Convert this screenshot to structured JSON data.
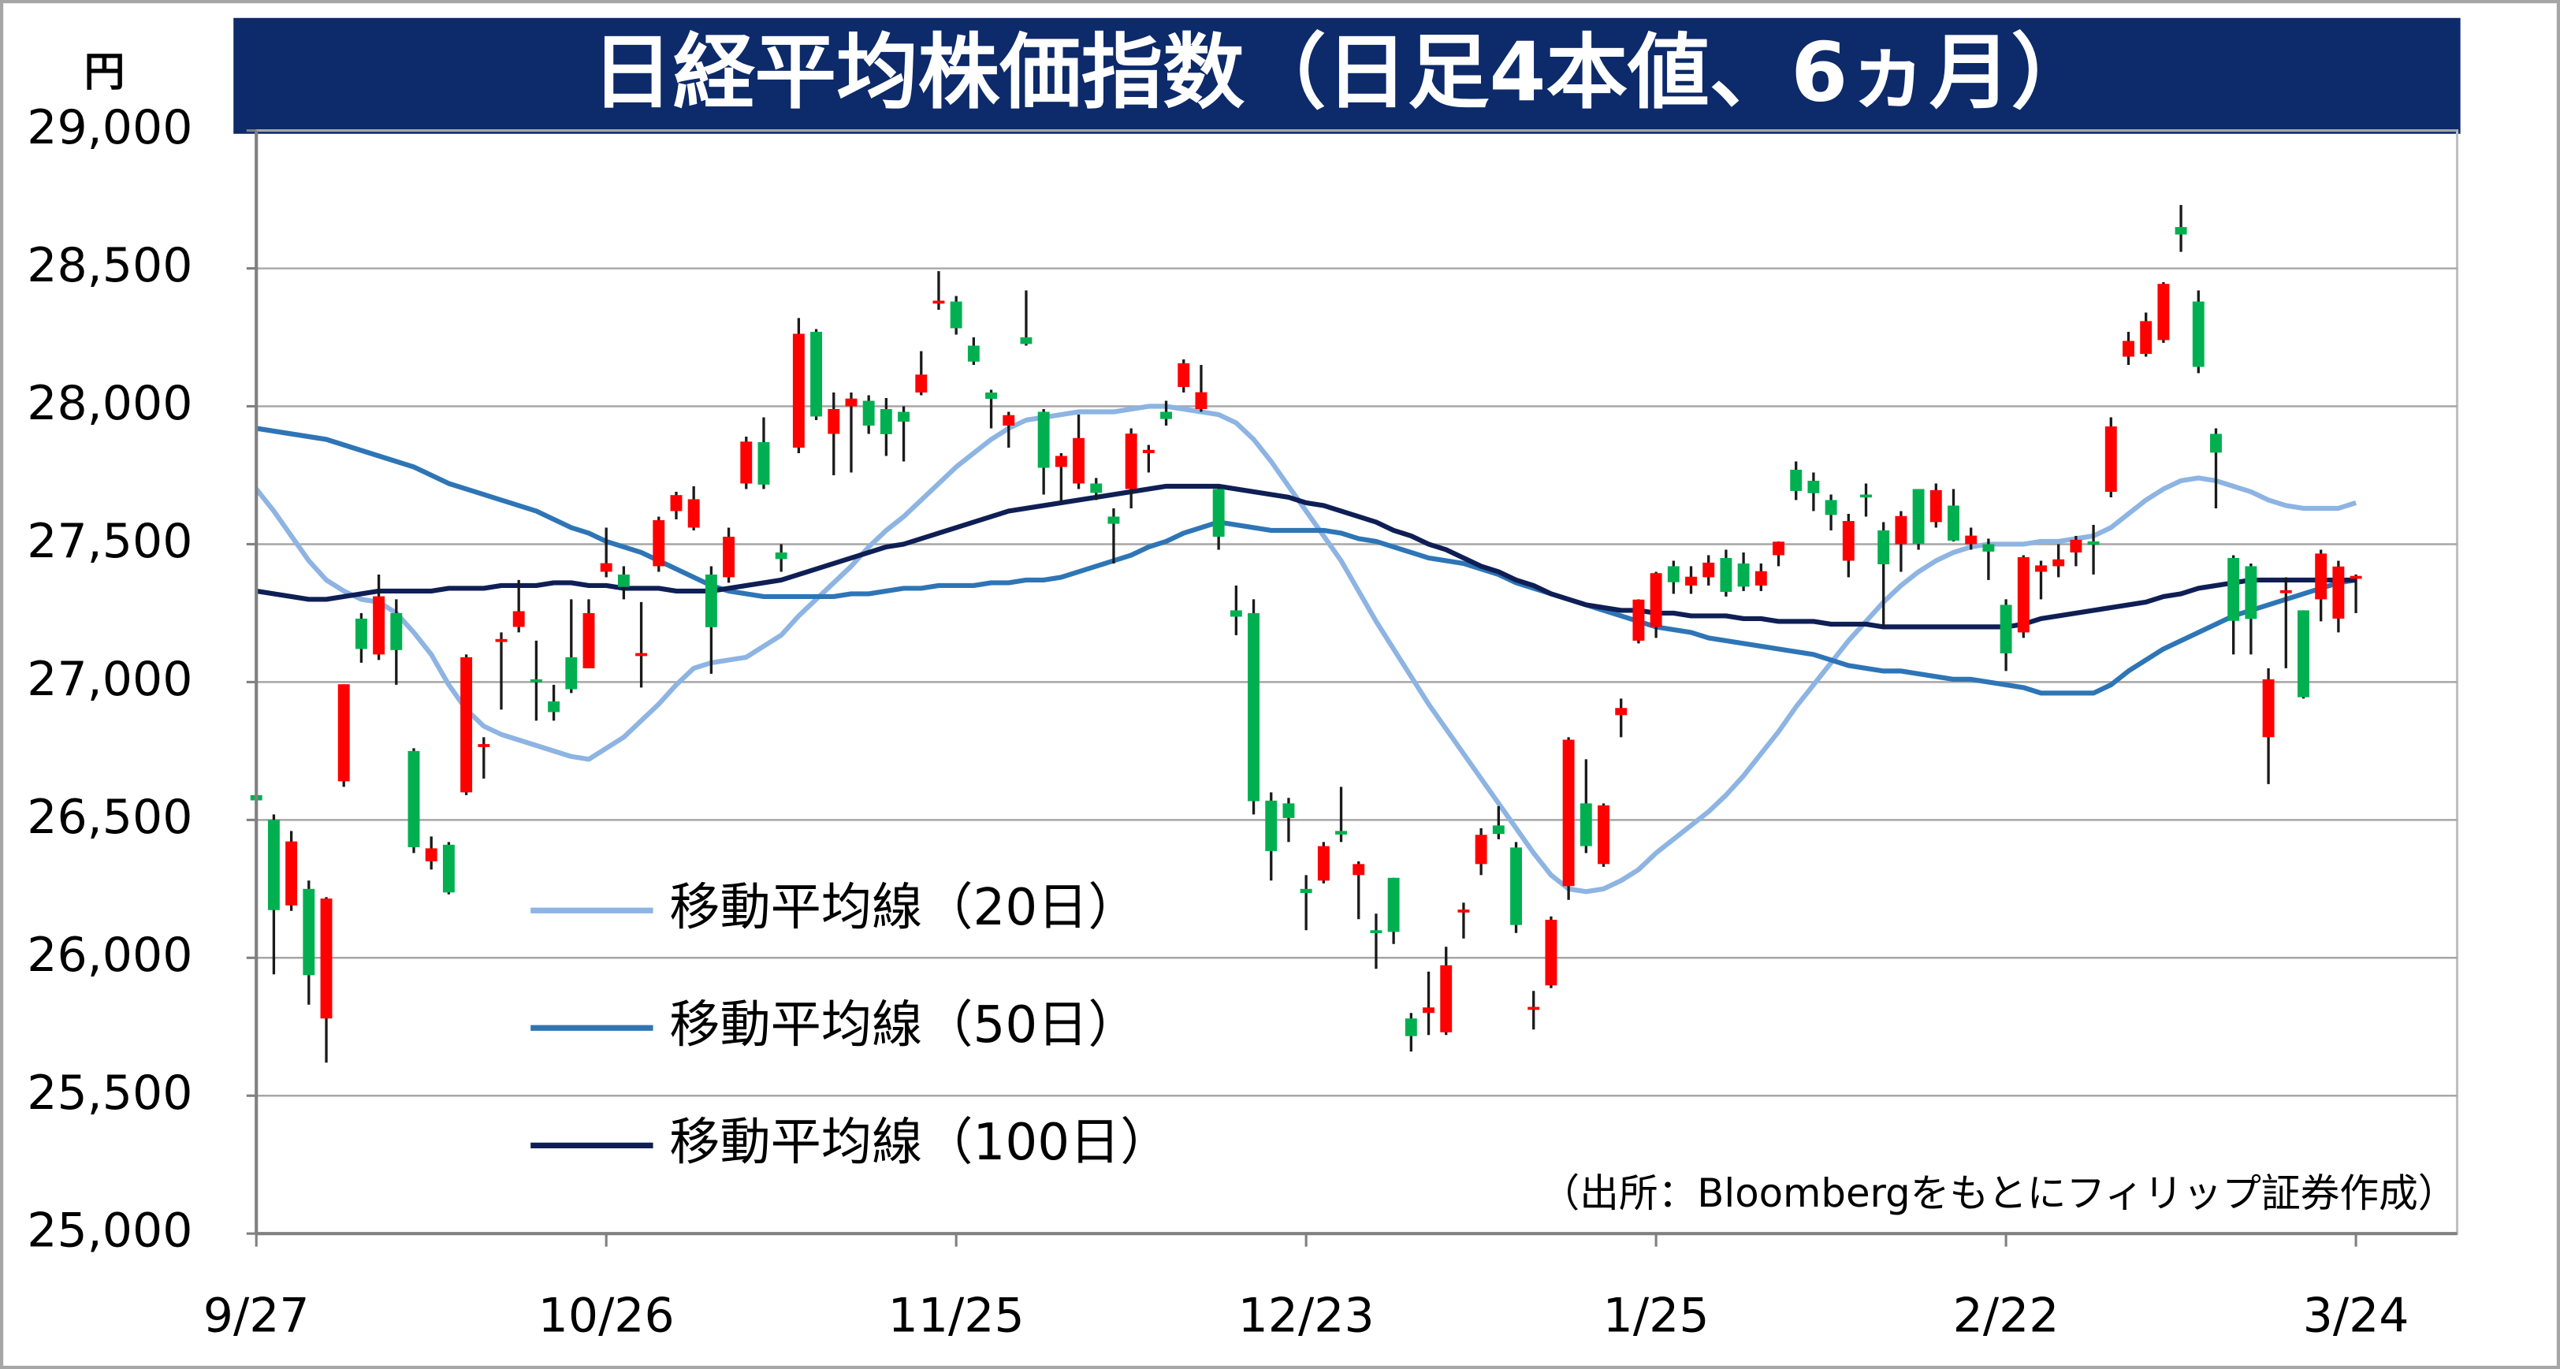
{
  "chart_data": {
    "type": "candlestick",
    "title": "日経平均株価指数（日足4本値、6ヵ月）",
    "y_unit": "円",
    "source": "（出所：Bloombergをもとにフィリップ証券作成）",
    "categories": [
      "9/27",
      null,
      null,
      null,
      null,
      null,
      null,
      null,
      null,
      null,
      null,
      null,
      null,
      null,
      null,
      null,
      null,
      null,
      null,
      null,
      "10/26",
      null,
      null,
      null,
      null,
      null,
      null,
      null,
      null,
      null,
      null,
      null,
      null,
      null,
      null,
      null,
      null,
      null,
      null,
      null,
      "11/25",
      null,
      null,
      null,
      null,
      null,
      null,
      null,
      null,
      null,
      null,
      null,
      null,
      null,
      null,
      null,
      null,
      null,
      null,
      null,
      "12/23",
      null,
      null,
      null,
      null,
      null,
      null,
      null,
      null,
      null,
      null,
      null,
      null,
      null,
      null,
      null,
      null,
      null,
      null,
      null,
      "1/25",
      null,
      null,
      null,
      null,
      null,
      null,
      null,
      null,
      null,
      null,
      null,
      null,
      null,
      null,
      null,
      null,
      null,
      null,
      null,
      "2/22",
      null,
      null,
      null,
      null,
      null,
      null,
      null,
      null,
      null,
      null,
      null,
      null,
      null,
      null,
      null,
      null,
      null,
      null,
      null,
      "3/24"
    ],
    "open": [
      26590,
      26500,
      26190,
      26250,
      25780,
      26640,
      27230,
      27100,
      27250,
      26750,
      26350,
      26410,
      26600,
      26770,
      27150,
      27200,
      27010,
      26930,
      27090,
      27050,
      27400,
      27390,
      27100,
      27420,
      27620,
      27560,
      27390,
      27380,
      27720,
      27870,
      27470,
      27850,
      28270,
      27900,
      28000,
      28020,
      27990,
      27980,
      28050,
      28380,
      28380,
      28220,
      28050,
      27930,
      28250,
      27980,
      27780,
      27720,
      27720,
      27600,
      27700,
      27830,
      27980,
      28070,
      27990,
      27700,
      27260,
      27250,
      26570,
      26560,
      26250,
      26280,
      26460,
      26300,
      26100,
      26290,
      25780,
      25800,
      25730,
      26170,
      26340,
      26480,
      26400,
      25820,
      25900,
      26260,
      26560,
      26340,
      26880,
      27150,
      27200,
      27420,
      27350,
      27380,
      27450,
      27430,
      27350,
      27460,
      27770,
      27730,
      27660,
      27440,
      27680,
      27550,
      27500,
      27700,
      27580,
      27640,
      27500,
      27500,
      27280,
      27180,
      27400,
      27420,
      27470,
      27510,
      27690,
      28180,
      28190,
      28240,
      28650,
      28380,
      27900,
      27450,
      27420,
      26800,
      27330,
      27260,
      27300,
      27230,
      27380
    ],
    "high": [
      26680,
      26520,
      26460,
      26280,
      26220,
      26992,
      27250,
      27390,
      27300,
      26760,
      26440,
      26420,
      27100,
      26800,
      27180,
      27370,
      27150,
      26990,
      27300,
      27300,
      27560,
      27420,
      27290,
      27600,
      27690,
      27710,
      27420,
      27560,
      27890,
      27960,
      27500,
      28320,
      28280,
      28050,
      28050,
      28040,
      28030,
      28000,
      28200,
      28490,
      28400,
      28250,
      28060,
      27980,
      28420,
      27990,
      27830,
      27970,
      27740,
      27630,
      27920,
      27860,
      28020,
      28170,
      28150,
      27710,
      27350,
      27300,
      26600,
      26580,
      26300,
      26420,
      26620,
      26350,
      26160,
      26290,
      25800,
      25950,
      26040,
      26200,
      26470,
      26550,
      26420,
      25880,
      26150,
      26800,
      26720,
      26560,
      26940,
      27300,
      27400,
      27440,
      27420,
      27460,
      27480,
      27470,
      27430,
      27510,
      27800,
      27760,
      27680,
      27610,
      27720,
      27580,
      27620,
      27700,
      27720,
      27700,
      27560,
      27520,
      27300,
      27460,
      27440,
      27500,
      27530,
      27570,
      27960,
      28270,
      28340,
      28450,
      28730,
      28420,
      27920,
      27460,
      27430,
      27050,
      27380,
      27260,
      27480,
      27440,
      27390
    ],
    "low": [
      26500,
      25940,
      26170,
      25830,
      25620,
      26620,
      27070,
      27080,
      26990,
      26380,
      26320,
      26230,
      26590,
      26650,
      26900,
      27180,
      26860,
      26860,
      26960,
      27050,
      27380,
      27300,
      26980,
      27400,
      27590,
      27550,
      27030,
      27360,
      27700,
      27700,
      27400,
      27830,
      27950,
      27750,
      27760,
      27900,
      27820,
      27800,
      28040,
      28350,
      28260,
      28150,
      27920,
      27850,
      28220,
      27680,
      27650,
      27700,
      27660,
      27430,
      27630,
      27760,
      27930,
      28050,
      27980,
      27480,
      27170,
      26520,
      26280,
      26420,
      26100,
      26270,
      26420,
      26140,
      25960,
      26050,
      25660,
      25720,
      25720,
      26070,
      26300,
      26430,
      26090,
      25740,
      25890,
      26210,
      26380,
      26330,
      26800,
      27140,
      27160,
      27320,
      27320,
      27350,
      27310,
      27330,
      27330,
      27420,
      27660,
      27620,
      27550,
      27380,
      27600,
      27200,
      27400,
      27480,
      27560,
      27510,
      27480,
      27370,
      27040,
      27160,
      27300,
      27380,
      27420,
      27390,
      27670,
      28150,
      28180,
      28230,
      28560,
      28120,
      27630,
      27100,
      27100,
      26630,
      27050,
      26940,
      27220,
      27180,
      27250
    ],
    "close": [
      26571,
      26173,
      26422,
      25937,
      26215,
      26992,
      27120,
      27311,
      27116,
      26401,
      26397,
      26237,
      27090,
      26775,
      27156,
      27257,
      27006,
      26891,
      26974,
      27250,
      27431,
      27345,
      27105,
      27587,
      27678,
      27663,
      27199,
      27527,
      27872,
      27716,
      27446,
      28263,
      27963,
      27990,
      28028,
      27930,
      27899,
      27944,
      28115,
      28383,
      28283,
      28162,
      28027,
      27968,
      28226,
      27777,
      27820,
      27885,
      27686,
      27574,
      27901,
      27842,
      27954,
      28156,
      28051,
      27527,
      27237,
      26568,
      26387,
      26507,
      26235,
      26405,
      26447,
      26340,
      26093,
      26094,
      25716,
      25820,
      25973,
      26175,
      26446,
      26449,
      26119,
      25822,
      26138,
      26791,
      26405,
      26553,
      26906,
      27299,
      27395,
      27362,
      27382,
      27433,
      27327,
      27346,
      27402,
      27509,
      27693,
      27685,
      27606,
      27584,
      27670,
      27427,
      27602,
      27501,
      27696,
      27513,
      27531,
      27473,
      27104,
      27453,
      27423,
      27445,
      27516,
      27498,
      27927,
      28237,
      28309,
      28444,
      28623,
      28143,
      27832,
      27222,
      27229,
      27010,
      27333,
      26945,
      27466,
      27419,
      27385
    ],
    "up_color": "#ff0000",
    "down_color": "#00b050",
    "series": [
      {
        "name": "移動平均線（20日）",
        "color": "#8db4e2",
        "values": [
          27700,
          27620,
          27530,
          27440,
          27370,
          27330,
          27300,
          27290,
          27250,
          27180,
          27100,
          26990,
          26900,
          26840,
          26810,
          26790,
          26770,
          26750,
          26730,
          26720,
          26760,
          26800,
          26860,
          26920,
          26990,
          27050,
          27070,
          27080,
          27090,
          27130,
          27170,
          27240,
          27300,
          27360,
          27420,
          27490,
          27550,
          27600,
          27660,
          27720,
          27780,
          27830,
          27880,
          27920,
          27950,
          27960,
          27970,
          27980,
          27980,
          27980,
          27990,
          28000,
          28000,
          27990,
          27980,
          27970,
          27940,
          27880,
          27800,
          27710,
          27620,
          27530,
          27440,
          27330,
          27220,
          27120,
          27020,
          26920,
          26830,
          26740,
          26650,
          26560,
          26470,
          26380,
          26300,
          26250,
          26240,
          26250,
          26280,
          26320,
          26380,
          26430,
          26480,
          26530,
          26590,
          26660,
          26740,
          26820,
          26910,
          26990,
          27070,
          27150,
          27220,
          27290,
          27350,
          27400,
          27440,
          27470,
          27490,
          27500,
          27500,
          27500,
          27510,
          27510,
          27520,
          27530,
          27560,
          27610,
          27660,
          27700,
          27730,
          27740,
          27730,
          27710,
          27690,
          27660,
          27640,
          27630,
          27630,
          27630,
          27650
        ]
      },
      {
        "name": "移動平均線（50日）",
        "color": "#2e75b6",
        "values": [
          27920,
          27910,
          27900,
          27890,
          27880,
          27860,
          27840,
          27820,
          27800,
          27780,
          27750,
          27720,
          27700,
          27680,
          27660,
          27640,
          27620,
          27590,
          27560,
          27540,
          27510,
          27490,
          27470,
          27440,
          27410,
          27380,
          27350,
          27330,
          27320,
          27310,
          27310,
          27310,
          27310,
          27310,
          27320,
          27320,
          27330,
          27340,
          27340,
          27350,
          27350,
          27350,
          27360,
          27360,
          27370,
          27370,
          27380,
          27400,
          27420,
          27440,
          27460,
          27490,
          27510,
          27540,
          27560,
          27580,
          27570,
          27560,
          27550,
          27550,
          27550,
          27550,
          27540,
          27520,
          27510,
          27490,
          27470,
          27450,
          27440,
          27430,
          27410,
          27390,
          27360,
          27340,
          27320,
          27300,
          27280,
          27260,
          27240,
          27220,
          27200,
          27190,
          27180,
          27160,
          27150,
          27140,
          27130,
          27120,
          27110,
          27100,
          27080,
          27060,
          27050,
          27040,
          27040,
          27030,
          27020,
          27010,
          27010,
          27000,
          26990,
          26980,
          26960,
          26960,
          26960,
          26960,
          26990,
          27040,
          27080,
          27120,
          27150,
          27180,
          27210,
          27240,
          27260,
          27280,
          27300,
          27320,
          27340,
          27360,
          27370
        ]
      },
      {
        "name": "移動平均線（100日）",
        "color": "#0f1f55",
        "values": [
          27330,
          27320,
          27310,
          27300,
          27300,
          27310,
          27320,
          27330,
          27330,
          27330,
          27330,
          27340,
          27340,
          27340,
          27350,
          27350,
          27350,
          27360,
          27360,
          27350,
          27350,
          27340,
          27340,
          27340,
          27330,
          27330,
          27330,
          27340,
          27350,
          27360,
          27370,
          27390,
          27410,
          27430,
          27450,
          27470,
          27490,
          27500,
          27520,
          27540,
          27560,
          27580,
          27600,
          27620,
          27630,
          27640,
          27650,
          27660,
          27670,
          27680,
          27690,
          27700,
          27710,
          27710,
          27710,
          27710,
          27700,
          27690,
          27680,
          27670,
          27650,
          27640,
          27620,
          27600,
          27580,
          27550,
          27530,
          27500,
          27480,
          27450,
          27420,
          27400,
          27370,
          27350,
          27320,
          27300,
          27280,
          27270,
          27260,
          27260,
          27250,
          27250,
          27240,
          27240,
          27240,
          27230,
          27230,
          27220,
          27220,
          27220,
          27210,
          27210,
          27210,
          27200,
          27200,
          27200,
          27200,
          27200,
          27200,
          27200,
          27200,
          27210,
          27230,
          27240,
          27250,
          27260,
          27270,
          27280,
          27290,
          27310,
          27320,
          27340,
          27350,
          27360,
          27370,
          27370,
          27370,
          27370,
          27370,
          27370,
          27370
        ]
      }
    ],
    "ylim": [
      25000,
      29000
    ],
    "yticks": [
      {
        "value": 25000,
        "label": "25,000"
      },
      {
        "value": 25500,
        "label": "25,500"
      },
      {
        "value": 26000,
        "label": "26,000"
      },
      {
        "value": 26500,
        "label": "26,500"
      },
      {
        "value": 27000,
        "label": "27,000"
      },
      {
        "value": 27500,
        "label": "27,500"
      },
      {
        "value": 28000,
        "label": "28,000"
      },
      {
        "value": 28500,
        "label": "28,500"
      },
      {
        "value": 29000,
        "label": "29,000"
      }
    ],
    "grid": true,
    "legend": "lower left"
  }
}
